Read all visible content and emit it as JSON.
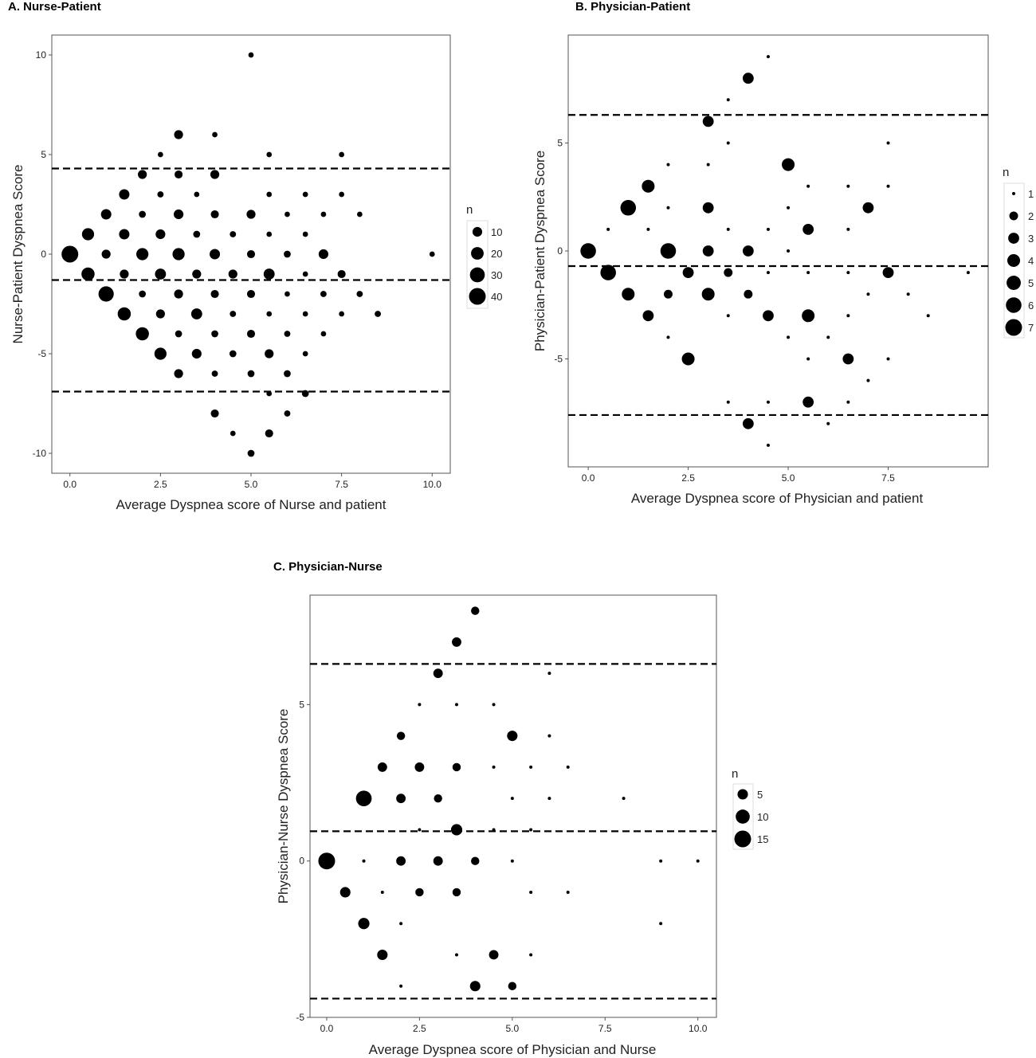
{
  "chart_data": [
    {
      "type": "scatter",
      "title": "A. Nurse-Patient",
      "xlabel": "Average Dyspnea score of Nurse and patient",
      "ylabel": "Nurse-Patient Dyspnea Score",
      "xlim": [
        -0.5,
        10.5
      ],
      "ylim": [
        -11,
        11
      ],
      "x_ticks": [
        0,
        2.5,
        5,
        7.5,
        10
      ],
      "x_tick_labels": [
        "0.0",
        "2.5",
        "5.0",
        "7.5",
        "10.0"
      ],
      "y_ticks": [
        -10,
        -5,
        0,
        5,
        10
      ],
      "y_tick_labels": [
        "-10",
        "-5",
        "0",
        "5",
        "10"
      ],
      "grid": false,
      "legend": {
        "title": "n",
        "placement": "right",
        "values": [
          10,
          20,
          30,
          40
        ],
        "labels": [
          "10",
          "20",
          "30",
          "40"
        ]
      },
      "reference_lines": [
        4.3,
        -1.3,
        -6.9
      ],
      "points": [
        {
          "x": 0,
          "y": 0,
          "n": 40
        },
        {
          "x": 0.5,
          "y": 1,
          "n": 18
        },
        {
          "x": 0.5,
          "y": -1,
          "n": 22
        },
        {
          "x": 1,
          "y": 2,
          "n": 12
        },
        {
          "x": 1,
          "y": 0,
          "n": 8
        },
        {
          "x": 1,
          "y": -2,
          "n": 32
        },
        {
          "x": 1.5,
          "y": 3,
          "n": 12
        },
        {
          "x": 1.5,
          "y": 1,
          "n": 12
        },
        {
          "x": 1.5,
          "y": -1,
          "n": 8
        },
        {
          "x": 1.5,
          "y": -3,
          "n": 22
        },
        {
          "x": 2,
          "y": 4,
          "n": 8
        },
        {
          "x": 2,
          "y": 2,
          "n": 4
        },
        {
          "x": 2,
          "y": 0,
          "n": 18
        },
        {
          "x": 2,
          "y": -2,
          "n": 4
        },
        {
          "x": 2,
          "y": -4,
          "n": 22
        },
        {
          "x": 2.5,
          "y": 5,
          "n": 2
        },
        {
          "x": 2.5,
          "y": 3,
          "n": 3
        },
        {
          "x": 2.5,
          "y": 1,
          "n": 10
        },
        {
          "x": 2.5,
          "y": -1,
          "n": 14
        },
        {
          "x": 2.5,
          "y": -3,
          "n": 8
        },
        {
          "x": 2.5,
          "y": -5,
          "n": 18
        },
        {
          "x": 3,
          "y": 6,
          "n": 8
        },
        {
          "x": 3,
          "y": 4,
          "n": 6
        },
        {
          "x": 3,
          "y": 2,
          "n": 10
        },
        {
          "x": 3,
          "y": 0,
          "n": 18
        },
        {
          "x": 3,
          "y": -2,
          "n": 8
        },
        {
          "x": 3,
          "y": -4,
          "n": 4
        },
        {
          "x": 3,
          "y": -6,
          "n": 8
        },
        {
          "x": 3.5,
          "y": 3,
          "n": 2
        },
        {
          "x": 3.5,
          "y": 1,
          "n": 4
        },
        {
          "x": 3.5,
          "y": -1,
          "n": 8
        },
        {
          "x": 3.5,
          "y": -3,
          "n": 14
        },
        {
          "x": 3.5,
          "y": -5,
          "n": 10
        },
        {
          "x": 4,
          "y": 6,
          "n": 2
        },
        {
          "x": 4,
          "y": 4,
          "n": 8
        },
        {
          "x": 4,
          "y": 2,
          "n": 6
        },
        {
          "x": 4,
          "y": 0,
          "n": 12
        },
        {
          "x": 4,
          "y": -2,
          "n": 6
        },
        {
          "x": 4,
          "y": -4,
          "n": 4
        },
        {
          "x": 4,
          "y": -6,
          "n": 3
        },
        {
          "x": 4,
          "y": -8,
          "n": 6
        },
        {
          "x": 4.5,
          "y": 1,
          "n": 3
        },
        {
          "x": 4.5,
          "y": -1,
          "n": 8
        },
        {
          "x": 4.5,
          "y": -3,
          "n": 3
        },
        {
          "x": 4.5,
          "y": -5,
          "n": 4
        },
        {
          "x": 4.5,
          "y": -9,
          "n": 2
        },
        {
          "x": 5,
          "y": 10,
          "n": 2
        },
        {
          "x": 5,
          "y": 2,
          "n": 8
        },
        {
          "x": 5,
          "y": 0,
          "n": 6
        },
        {
          "x": 5,
          "y": -2,
          "n": 6
        },
        {
          "x": 5,
          "y": -4,
          "n": 6
        },
        {
          "x": 5,
          "y": -6,
          "n": 4
        },
        {
          "x": 5,
          "y": -10,
          "n": 4
        },
        {
          "x": 5.5,
          "y": 5,
          "n": 2
        },
        {
          "x": 5.5,
          "y": 3,
          "n": 2
        },
        {
          "x": 5.5,
          "y": 1,
          "n": 2
        },
        {
          "x": 5.5,
          "y": -1,
          "n": 14
        },
        {
          "x": 5.5,
          "y": -3,
          "n": 2
        },
        {
          "x": 5.5,
          "y": -5,
          "n": 8
        },
        {
          "x": 5.5,
          "y": -7,
          "n": 2
        },
        {
          "x": 5.5,
          "y": -9,
          "n": 6
        },
        {
          "x": 6,
          "y": 2,
          "n": 2
        },
        {
          "x": 6,
          "y": 0,
          "n": 4
        },
        {
          "x": 6,
          "y": -2,
          "n": 2
        },
        {
          "x": 6,
          "y": -4,
          "n": 3
        },
        {
          "x": 6,
          "y": -6,
          "n": 4
        },
        {
          "x": 6,
          "y": -8,
          "n": 3
        },
        {
          "x": 6.5,
          "y": 3,
          "n": 2
        },
        {
          "x": 6.5,
          "y": 1,
          "n": 2
        },
        {
          "x": 6.5,
          "y": -1,
          "n": 2
        },
        {
          "x": 6.5,
          "y": -3,
          "n": 2
        },
        {
          "x": 6.5,
          "y": -5,
          "n": 2
        },
        {
          "x": 6.5,
          "y": -7,
          "n": 4
        },
        {
          "x": 7,
          "y": 2,
          "n": 2
        },
        {
          "x": 7,
          "y": 0,
          "n": 10
        },
        {
          "x": 7,
          "y": -2,
          "n": 3
        },
        {
          "x": 7,
          "y": -4,
          "n": 2
        },
        {
          "x": 7.5,
          "y": 5,
          "n": 2
        },
        {
          "x": 7.5,
          "y": 3,
          "n": 2
        },
        {
          "x": 7.5,
          "y": -1,
          "n": 6
        },
        {
          "x": 7.5,
          "y": -3,
          "n": 2
        },
        {
          "x": 8,
          "y": 2,
          "n": 2
        },
        {
          "x": 8,
          "y": -2,
          "n": 3
        },
        {
          "x": 8.5,
          "y": -3,
          "n": 3
        },
        {
          "x": 10,
          "y": 0,
          "n": 2
        }
      ]
    },
    {
      "type": "scatter",
      "title": "B. Physician-Patient",
      "xlabel": "Average Dyspnea score of Physician and patient",
      "ylabel": "Physician-Patient Dyspnea Score",
      "xlim": [
        -0.5,
        10
      ],
      "ylim": [
        -10,
        10
      ],
      "x_ticks": [
        0,
        2.5,
        5,
        7.5
      ],
      "x_tick_labels": [
        "0.0",
        "2.5",
        "5.0",
        "7.5"
      ],
      "y_ticks": [
        -5,
        0,
        5
      ],
      "y_tick_labels": [
        "-5",
        "0",
        "5"
      ],
      "grid": false,
      "legend": {
        "title": "n",
        "placement": "right",
        "values": [
          1,
          2,
          3,
          4,
          5,
          6,
          7
        ],
        "labels": [
          "1",
          "2",
          "3",
          "4",
          "5",
          "6",
          "7"
        ]
      },
      "reference_lines": [
        6.3,
        -0.7,
        -7.6
      ],
      "points": [
        {
          "x": 0,
          "y": 0,
          "n": 6
        },
        {
          "x": 0.5,
          "y": 1,
          "n": 1
        },
        {
          "x": 0.5,
          "y": -1,
          "n": 6
        },
        {
          "x": 1,
          "y": 2,
          "n": 6
        },
        {
          "x": 1,
          "y": -2,
          "n": 4
        },
        {
          "x": 1.5,
          "y": 3,
          "n": 4
        },
        {
          "x": 1.5,
          "y": 1,
          "n": 1
        },
        {
          "x": 1.5,
          "y": -3,
          "n": 3
        },
        {
          "x": 2,
          "y": 4,
          "n": 1
        },
        {
          "x": 2,
          "y": 2,
          "n": 1
        },
        {
          "x": 2,
          "y": 0,
          "n": 6
        },
        {
          "x": 2,
          "y": -2,
          "n": 2
        },
        {
          "x": 2,
          "y": -4,
          "n": 1
        },
        {
          "x": 2.5,
          "y": -1,
          "n": 3
        },
        {
          "x": 2.5,
          "y": -5,
          "n": 4
        },
        {
          "x": 3,
          "y": 6,
          "n": 3
        },
        {
          "x": 3,
          "y": 4,
          "n": 1
        },
        {
          "x": 3,
          "y": 2,
          "n": 3
        },
        {
          "x": 3,
          "y": 0,
          "n": 3
        },
        {
          "x": 3,
          "y": -2,
          "n": 4
        },
        {
          "x": 3.5,
          "y": 7,
          "n": 1
        },
        {
          "x": 3.5,
          "y": 5,
          "n": 1
        },
        {
          "x": 3.5,
          "y": 1,
          "n": 1
        },
        {
          "x": 3.5,
          "y": -1,
          "n": 2
        },
        {
          "x": 3.5,
          "y": -3,
          "n": 1
        },
        {
          "x": 3.5,
          "y": -7,
          "n": 1
        },
        {
          "x": 4,
          "y": 8,
          "n": 3
        },
        {
          "x": 4,
          "y": 0,
          "n": 3
        },
        {
          "x": 4,
          "y": -2,
          "n": 2
        },
        {
          "x": 4,
          "y": -8,
          "n": 3
        },
        {
          "x": 4.5,
          "y": 9,
          "n": 1
        },
        {
          "x": 4.5,
          "y": 1,
          "n": 1
        },
        {
          "x": 4.5,
          "y": -1,
          "n": 1
        },
        {
          "x": 4.5,
          "y": -3,
          "n": 3
        },
        {
          "x": 4.5,
          "y": -7,
          "n": 1
        },
        {
          "x": 4.5,
          "y": -9,
          "n": 1
        },
        {
          "x": 5,
          "y": 4,
          "n": 4
        },
        {
          "x": 5,
          "y": 2,
          "n": 1
        },
        {
          "x": 5,
          "y": 0,
          "n": 1
        },
        {
          "x": 5,
          "y": -4,
          "n": 1
        },
        {
          "x": 5.5,
          "y": 3,
          "n": 1
        },
        {
          "x": 5.5,
          "y": 1,
          "n": 3
        },
        {
          "x": 5.5,
          "y": -1,
          "n": 1
        },
        {
          "x": 5.5,
          "y": -3,
          "n": 4
        },
        {
          "x": 5.5,
          "y": -5,
          "n": 1
        },
        {
          "x": 5.5,
          "y": -7,
          "n": 3
        },
        {
          "x": 6,
          "y": -4,
          "n": 1
        },
        {
          "x": 6,
          "y": -8,
          "n": 1
        },
        {
          "x": 6.5,
          "y": 3,
          "n": 1
        },
        {
          "x": 6.5,
          "y": 1,
          "n": 1
        },
        {
          "x": 6.5,
          "y": -1,
          "n": 1
        },
        {
          "x": 6.5,
          "y": -3,
          "n": 1
        },
        {
          "x": 6.5,
          "y": -5,
          "n": 3
        },
        {
          "x": 6.5,
          "y": -7,
          "n": 1
        },
        {
          "x": 7,
          "y": 2,
          "n": 3
        },
        {
          "x": 7,
          "y": -2,
          "n": 1
        },
        {
          "x": 7,
          "y": -6,
          "n": 1
        },
        {
          "x": 7.5,
          "y": 5,
          "n": 1
        },
        {
          "x": 7.5,
          "y": 3,
          "n": 1
        },
        {
          "x": 7.5,
          "y": -1,
          "n": 3
        },
        {
          "x": 7.5,
          "y": -5,
          "n": 1
        },
        {
          "x": 8,
          "y": -2,
          "n": 1
        },
        {
          "x": 8.5,
          "y": -3,
          "n": 1
        },
        {
          "x": 9.5,
          "y": -1,
          "n": 1
        }
      ]
    },
    {
      "type": "scatter",
      "title": "C. Physician-Nurse",
      "xlabel": "Average Dyspnea score of Physician and Nurse",
      "ylabel": "Physician-Nurse Dyspnea Score",
      "xlim": [
        -0.45,
        10.5
      ],
      "ylim": [
        -5,
        8.5
      ],
      "x_ticks": [
        0,
        2.5,
        5,
        7.5,
        10
      ],
      "x_tick_labels": [
        "0.0",
        "2.5",
        "5.0",
        "7.5",
        "10.0"
      ],
      "y_ticks": [
        -5,
        0,
        5
      ],
      "y_tick_labels": [
        "-5",
        "0",
        "5"
      ],
      "grid": false,
      "legend": {
        "title": "n",
        "placement": "right",
        "values": [
          5,
          10,
          15
        ],
        "labels": [
          "5",
          "10",
          "15"
        ]
      },
      "reference_lines": [
        6.3,
        0.95,
        -4.4
      ],
      "points": [
        {
          "x": 0,
          "y": 0,
          "n": 15
        },
        {
          "x": 0.5,
          "y": -1,
          "n": 5
        },
        {
          "x": 1,
          "y": 2,
          "n": 13
        },
        {
          "x": 1,
          "y": 0,
          "n": 1
        },
        {
          "x": 1,
          "y": -2,
          "n": 6
        },
        {
          "x": 1.5,
          "y": 3,
          "n": 4
        },
        {
          "x": 1.5,
          "y": -1,
          "n": 1
        },
        {
          "x": 1.5,
          "y": -3,
          "n": 5
        },
        {
          "x": 2,
          "y": 4,
          "n": 3
        },
        {
          "x": 2,
          "y": 2,
          "n": 4
        },
        {
          "x": 2,
          "y": 0,
          "n": 4
        },
        {
          "x": 2,
          "y": -2,
          "n": 1
        },
        {
          "x": 2,
          "y": -4,
          "n": 1
        },
        {
          "x": 2.5,
          "y": 5,
          "n": 1
        },
        {
          "x": 2.5,
          "y": 3,
          "n": 4
        },
        {
          "x": 2.5,
          "y": 1,
          "n": 1
        },
        {
          "x": 2.5,
          "y": -1,
          "n": 3
        },
        {
          "x": 3,
          "y": 6,
          "n": 4
        },
        {
          "x": 3,
          "y": 2,
          "n": 3
        },
        {
          "x": 3,
          "y": 0,
          "n": 4
        },
        {
          "x": 3.5,
          "y": 7,
          "n": 4
        },
        {
          "x": 3.5,
          "y": 5,
          "n": 1
        },
        {
          "x": 3.5,
          "y": 3,
          "n": 3
        },
        {
          "x": 3.5,
          "y": 1,
          "n": 6
        },
        {
          "x": 3.5,
          "y": -1,
          "n": 3
        },
        {
          "x": 3.5,
          "y": -3,
          "n": 1
        },
        {
          "x": 4,
          "y": 8,
          "n": 3
        },
        {
          "x": 4,
          "y": 0,
          "n": 3
        },
        {
          "x": 4,
          "y": -4,
          "n": 5
        },
        {
          "x": 4.5,
          "y": 5,
          "n": 1
        },
        {
          "x": 4.5,
          "y": 3,
          "n": 1
        },
        {
          "x": 4.5,
          "y": 1,
          "n": 1
        },
        {
          "x": 4.5,
          "y": -3,
          "n": 4
        },
        {
          "x": 5,
          "y": 4,
          "n": 5
        },
        {
          "x": 5,
          "y": 2,
          "n": 1
        },
        {
          "x": 5,
          "y": 0,
          "n": 1
        },
        {
          "x": 5,
          "y": -4,
          "n": 3
        },
        {
          "x": 5.5,
          "y": 3,
          "n": 1
        },
        {
          "x": 5.5,
          "y": 1,
          "n": 1
        },
        {
          "x": 5.5,
          "y": -1,
          "n": 1
        },
        {
          "x": 5.5,
          "y": -3,
          "n": 1
        },
        {
          "x": 6,
          "y": 6,
          "n": 1
        },
        {
          "x": 6,
          "y": 4,
          "n": 1
        },
        {
          "x": 6,
          "y": 2,
          "n": 1
        },
        {
          "x": 6.5,
          "y": 3,
          "n": 1
        },
        {
          "x": 6.5,
          "y": -1,
          "n": 1
        },
        {
          "x": 8,
          "y": 2,
          "n": 1
        },
        {
          "x": 9,
          "y": 0,
          "n": 1
        },
        {
          "x": 9,
          "y": -2,
          "n": 1
        },
        {
          "x": 10,
          "y": 0,
          "n": 1
        }
      ]
    }
  ]
}
